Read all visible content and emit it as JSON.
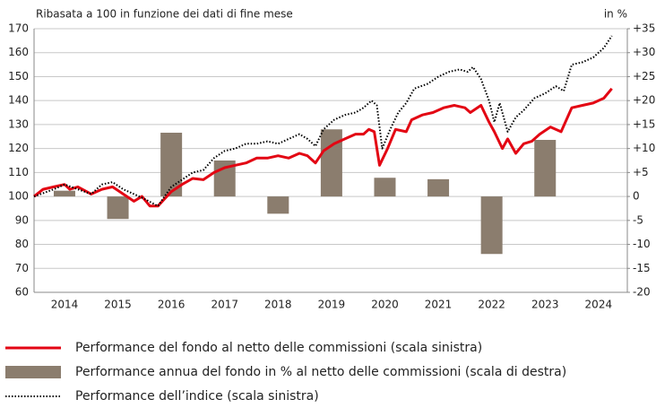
{
  "chart_data": {
    "type": "combo",
    "ylabel": "Ribasata a 100 in funzione dei dati di fine mese",
    "y2label": "in %",
    "xlim": [
      2013.93,
      2025.04
    ],
    "xticks": [
      {
        "value": 2014.5,
        "label": "2014"
      },
      {
        "value": 2015.5,
        "label": "2015"
      },
      {
        "value": 2016.5,
        "label": "2016"
      },
      {
        "value": 2017.5,
        "label": "2017"
      },
      {
        "value": 2018.5,
        "label": "2018"
      },
      {
        "value": 2019.5,
        "label": "2019"
      },
      {
        "value": 2020.5,
        "label": "2020"
      },
      {
        "value": 2021.5,
        "label": "2021"
      },
      {
        "value": 2022.5,
        "label": "2022"
      },
      {
        "value": 2023.5,
        "label": "2023"
      },
      {
        "value": 2024.5,
        "label": "2024"
      }
    ],
    "ylim": [
      60,
      170
    ],
    "yticks": [
      60,
      70,
      80,
      90,
      100,
      110,
      120,
      130,
      140,
      150,
      160,
      170
    ],
    "y2lim": [
      -20,
      35
    ],
    "y2ticks": [
      -20,
      -15,
      -10,
      -5,
      0,
      {
        "value": 5,
        "label": "+5"
      },
      {
        "value": 10,
        "label": "+10"
      },
      {
        "value": 15,
        "label": "+15"
      },
      {
        "value": 20,
        "label": "+20"
      },
      {
        "value": 25,
        "label": "+25"
      },
      {
        "value": 30,
        "label": "+30"
      },
      {
        "value": 35,
        "label": "+35"
      }
    ],
    "grid": true,
    "series": [
      {
        "name": "Performance del fondo al netto delle commissioni (scala sinistra)",
        "type": "line",
        "color": "#e30613",
        "x": [
          2013.93,
          2014.1,
          2014.3,
          2014.5,
          2014.6,
          2014.75,
          2015.0,
          2015.2,
          2015.4,
          2015.6,
          2015.8,
          2015.95,
          2016.1,
          2016.25,
          2016.5,
          2016.7,
          2016.9,
          2017.1,
          2017.3,
          2017.5,
          2017.7,
          2017.9,
          2018.1,
          2018.3,
          2018.5,
          2018.7,
          2018.9,
          2019.05,
          2019.2,
          2019.35,
          2019.55,
          2019.75,
          2019.95,
          2020.1,
          2020.2,
          2020.3,
          2020.4,
          2020.55,
          2020.7,
          2020.9,
          2021.0,
          2021.2,
          2021.4,
          2021.6,
          2021.8,
          2022.0,
          2022.1,
          2022.3,
          2022.45,
          2022.55,
          2022.7,
          2022.8,
          2022.95,
          2023.1,
          2023.25,
          2023.4,
          2023.6,
          2023.8,
          2024.0,
          2024.2,
          2024.4,
          2024.6,
          2024.75
        ],
        "values": [
          100,
          103,
          104,
          105,
          103,
          104,
          101,
          103,
          104,
          101,
          98,
          100,
          96,
          96,
          102,
          105,
          107.5,
          107,
          110,
          112,
          113,
          114,
          116,
          116,
          117,
          116,
          118,
          117,
          114,
          119,
          122,
          124,
          126,
          126,
          128,
          127,
          113,
          120,
          128,
          127,
          132,
          134,
          135,
          137,
          138,
          137,
          135,
          138,
          131,
          127,
          120,
          124,
          118,
          122,
          123,
          126,
          129,
          127,
          137,
          138,
          139,
          141,
          145
        ]
      },
      {
        "name": "Performance annua del fondo in % al netto delle commissioni (scala di destra)",
        "type": "bar",
        "axis": "y2",
        "color": "#8b7d6e",
        "x": [
          2014.5,
          2015.5,
          2016.5,
          2017.5,
          2018.5,
          2019.5,
          2020.5,
          2021.5,
          2022.5,
          2023.5
        ],
        "values": [
          1.2,
          -4.7,
          13.3,
          7.5,
          -3.6,
          14.0,
          3.9,
          3.6,
          -12.0,
          11.8
        ]
      },
      {
        "name": "Performance dell’indice (scala sinistra)",
        "type": "line",
        "color": "#000000",
        "dash": "dotted",
        "x": [
          2013.93,
          2014.3,
          2014.5,
          2014.75,
          2015.0,
          2015.2,
          2015.4,
          2015.6,
          2015.8,
          2016.0,
          2016.25,
          2016.5,
          2016.7,
          2016.9,
          2017.1,
          2017.3,
          2017.5,
          2017.7,
          2017.9,
          2018.1,
          2018.3,
          2018.5,
          2018.7,
          2018.9,
          2019.05,
          2019.2,
          2019.35,
          2019.55,
          2019.75,
          2019.95,
          2020.1,
          2020.25,
          2020.35,
          2020.45,
          2020.6,
          2020.75,
          2020.9,
          2021.05,
          2021.3,
          2021.5,
          2021.7,
          2021.9,
          2022.05,
          2022.15,
          2022.3,
          2022.45,
          2022.55,
          2022.65,
          2022.8,
          2022.95,
          2023.1,
          2023.3,
          2023.5,
          2023.7,
          2023.85,
          2024.0,
          2024.2,
          2024.4,
          2024.6,
          2024.75
        ],
        "values": [
          100,
          103,
          105,
          103,
          101,
          105,
          106,
          103,
          101,
          99,
          96,
          104,
          107,
          110,
          111,
          116,
          119,
          120,
          122,
          122,
          123,
          122,
          124,
          126,
          124,
          121,
          128,
          132,
          134,
          135,
          137,
          140,
          138,
          120,
          128,
          135,
          139,
          145,
          147,
          150,
          152,
          153,
          152,
          154,
          149,
          140,
          131,
          139,
          127,
          133,
          136,
          141,
          143,
          146,
          144,
          155,
          156,
          158,
          162,
          167
        ]
      }
    ]
  }
}
